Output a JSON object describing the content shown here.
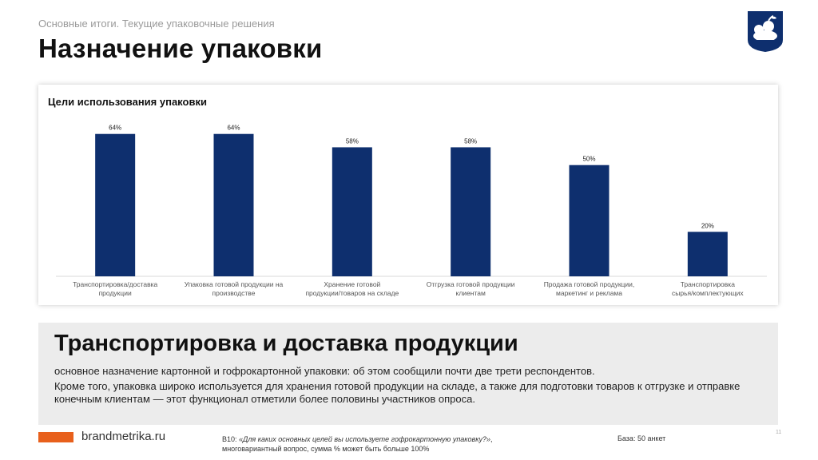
{
  "header": {
    "subtitle": "Основные итоги. Текущие упаковочные решения",
    "title": "Назначение упаковки"
  },
  "colors": {
    "bar": "#0e2f6e",
    "accent": "#e8601c",
    "summary_bg": "#ececec"
  },
  "logo": {
    "icon": "bear-with-apple-logo-icon",
    "color": "#0e2f6e"
  },
  "chart_data": {
    "type": "bar",
    "title": "Цели использования упаковки",
    "categories": [
      [
        "Транспортировка/доставка",
        "продукции"
      ],
      [
        "Упаковка готовой продукции на",
        "производстве"
      ],
      [
        "Хранение готовой",
        "продукции/товаров на складе"
      ],
      [
        "Отгрузка готовой продукции",
        "клиентам"
      ],
      [
        "Продажа готовой продукции,",
        "маркетинг и реклама"
      ],
      [
        "Транспортировка",
        "сырья/комплектующих"
      ]
    ],
    "values": [
      64,
      64,
      58,
      58,
      50,
      20
    ],
    "value_labels": [
      "64%",
      "64%",
      "58%",
      "58%",
      "50%",
      "20%"
    ],
    "ylim": [
      0,
      70
    ],
    "grid": false,
    "legend": "none"
  },
  "summary": {
    "heading": "Транспортировка и доставка продукции",
    "p1": "основное назначение картонной и гофрокартонной упаковки: об этом сообщили почти две трети респондентов.",
    "p2": "Кроме того, упаковка широко используется для хранения готовой продукции на складе, а также для подготовки товаров к отгрузке и отправке конечным клиентам — этот функционал отметили более половины участников опроса."
  },
  "footer": {
    "site": "brandmetrika.ru",
    "note_prefix": "B10: ",
    "note_question": "«Для каких основных целей вы используете гофрокартонную упаковку?»",
    "note_suffix": ",",
    "note_line2": "многовариантный вопрос, сумма % может быть больше 100%",
    "base": "База: 50 анкет",
    "page": "11"
  }
}
